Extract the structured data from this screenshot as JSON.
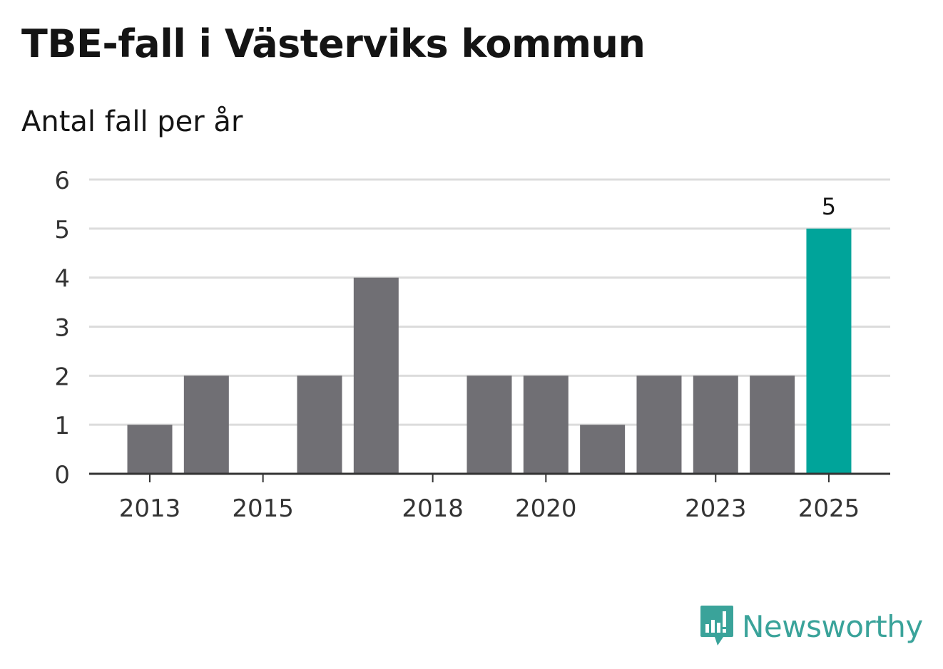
{
  "chart_data": {
    "type": "bar",
    "title": "TBE-fall i Västerviks kommun",
    "subtitle": "Antal fall per år",
    "categories": [
      "2013",
      "2014",
      "2015",
      "2016",
      "2017",
      "2018",
      "2019",
      "2020",
      "2021",
      "2022",
      "2023",
      "2024",
      "2025"
    ],
    "values": [
      1,
      2,
      0,
      2,
      4,
      0,
      2,
      2,
      1,
      2,
      2,
      2,
      5
    ],
    "x_tick_labels": [
      "2013",
      "2015",
      "2018",
      "2020",
      "2023",
      "2025"
    ],
    "y_ticks": [
      0,
      1,
      2,
      3,
      4,
      5,
      6
    ],
    "ylim": [
      0,
      6
    ],
    "xlabel": "",
    "ylabel": "",
    "grid": true,
    "highlight": {
      "category": "2025",
      "label": "5"
    },
    "colors": {
      "bar": "#706f74",
      "highlight": "#00a49a",
      "grid": "#dcdcdc",
      "axis": "#333333"
    }
  },
  "brand": {
    "name": "Newsworthy",
    "icon": "newsworthy-logo-icon",
    "color": "#3aa39a"
  }
}
